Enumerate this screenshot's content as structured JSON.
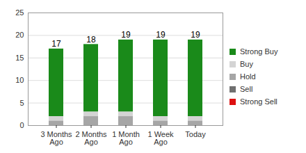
{
  "chart_data": {
    "type": "bar",
    "stacked": true,
    "categories": [
      "3 Months Ago",
      "2 Months Ago",
      "1 Month Ago",
      "1 Week Ago",
      "Today"
    ],
    "series": [
      {
        "name": "Strong Buy",
        "color": "#1a8a1a",
        "values": [
          15,
          15,
          16,
          17,
          17
        ]
      },
      {
        "name": "Buy",
        "color": "#d4d4d4",
        "values": [
          1,
          1,
          1,
          1,
          1
        ]
      },
      {
        "name": "Hold",
        "color": "#a6a6a6",
        "values": [
          1,
          2,
          2,
          1,
          1
        ]
      },
      {
        "name": "Sell",
        "color": "#707070",
        "values": [
          0,
          0,
          0,
          0,
          0
        ]
      },
      {
        "name": "Strong Sell",
        "color": "#dd1111",
        "values": [
          0,
          0,
          0,
          0,
          0
        ]
      }
    ],
    "totals": [
      17,
      18,
      19,
      19,
      19
    ],
    "ylim": [
      0,
      25
    ],
    "yticks": [
      0,
      5,
      10,
      15,
      20,
      25
    ],
    "grid": true,
    "legend": "right"
  }
}
